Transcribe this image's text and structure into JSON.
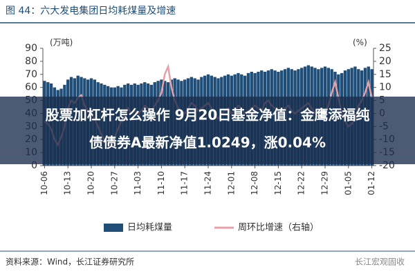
{
  "chart_data": {
    "type": "bar_line",
    "title": "图 44：六大发电集团日均耗煤量及增速",
    "y_unit": "(万吨)",
    "y2_unit": "(%)",
    "categories": [
      "10-06",
      null,
      null,
      null,
      null,
      null,
      null,
      "10-13",
      null,
      null,
      null,
      null,
      null,
      null,
      "10-20",
      null,
      null,
      null,
      null,
      null,
      null,
      "10-27",
      null,
      null,
      null,
      null,
      null,
      null,
      "11-03",
      null,
      null,
      null,
      null,
      null,
      null,
      "11-10",
      null,
      null,
      null,
      null,
      null,
      null,
      "11-17",
      null,
      null,
      null,
      null,
      null,
      null,
      "11-24",
      null,
      null,
      null,
      null,
      null,
      null,
      "12-01",
      null,
      null,
      null,
      null,
      null,
      null,
      "12-08",
      null,
      null,
      null,
      null,
      null,
      null,
      "12-15",
      null,
      null,
      null,
      null,
      null,
      null,
      "12-22",
      null,
      null,
      null,
      null,
      null,
      null,
      "12-29",
      null,
      null,
      null,
      null,
      null,
      null,
      "01-05",
      null,
      null,
      null,
      null,
      null,
      null,
      "01-12"
    ],
    "series": [
      {
        "name": "日均耗煤量",
        "color": "#1f4e79",
        "kind": "bar",
        "values": [
          65,
          64,
          63,
          60,
          58,
          59,
          62,
          66,
          68,
          67,
          69,
          68,
          67,
          66,
          67,
          66,
          64,
          63,
          62,
          61,
          60,
          60,
          61,
          60,
          62,
          63,
          62,
          63,
          62,
          63,
          64,
          63,
          62,
          64,
          65,
          66,
          65,
          64,
          66,
          67,
          66,
          65,
          66,
          67,
          68,
          67,
          66,
          68,
          69,
          70,
          69,
          68,
          67,
          68,
          69,
          70,
          69,
          70,
          71,
          70,
          69,
          71,
          72,
          71,
          72,
          73,
          72,
          73,
          74,
          73,
          72,
          73,
          74,
          75,
          74,
          73,
          74,
          75,
          76,
          77,
          76,
          75,
          74,
          75,
          76,
          75,
          74,
          72,
          70,
          71,
          73,
          74,
          75,
          76,
          74,
          73,
          75,
          76,
          74
        ]
      },
      {
        "name": "周环比增速（右轴）",
        "color": "#e8a0a8",
        "kind": "line",
        "axis": "y2",
        "values": [
          -3,
          -4,
          -6,
          -10,
          -12,
          -9,
          -5,
          2,
          5,
          4,
          6,
          7,
          3,
          1,
          0,
          -2,
          -5,
          -8,
          -10,
          -12,
          -11,
          -9,
          -6,
          -3,
          -1,
          2,
          0,
          1,
          0,
          1,
          3,
          2,
          1,
          3,
          5,
          8,
          15,
          18,
          10,
          5,
          2,
          1,
          0,
          2,
          4,
          3,
          1,
          2,
          3,
          4,
          2,
          -1,
          -2,
          0,
          1,
          2,
          0,
          1,
          3,
          2,
          0,
          1,
          2,
          3,
          2,
          1,
          4,
          5,
          3,
          2,
          1,
          0,
          2,
          3,
          1,
          0,
          1,
          2,
          3,
          4,
          2,
          0,
          -1,
          0,
          1,
          3,
          8,
          12,
          6,
          0,
          -3,
          -5,
          -4,
          -2,
          3,
          5,
          8,
          12,
          6
        ]
      }
    ],
    "ylim": [
      0,
      90
    ],
    "yticks": [
      0,
      10,
      20,
      30,
      40,
      50,
      60,
      70,
      80,
      90
    ],
    "y2lim": [
      -20,
      25
    ],
    "y2ticks": [
      -20,
      -15,
      -10,
      -5,
      0,
      5,
      10,
      15,
      20,
      25
    ],
    "grid": false,
    "source": "资料来源：Wind，长江证券研究所",
    "watermark": "长江宏观固收"
  },
  "overlay": {
    "lines": [
      "股票加杠杆怎么操作 9月20日基金净值：金鹰添福纯",
      "债债券A最新净值1.0249，涨0.04%"
    ]
  }
}
